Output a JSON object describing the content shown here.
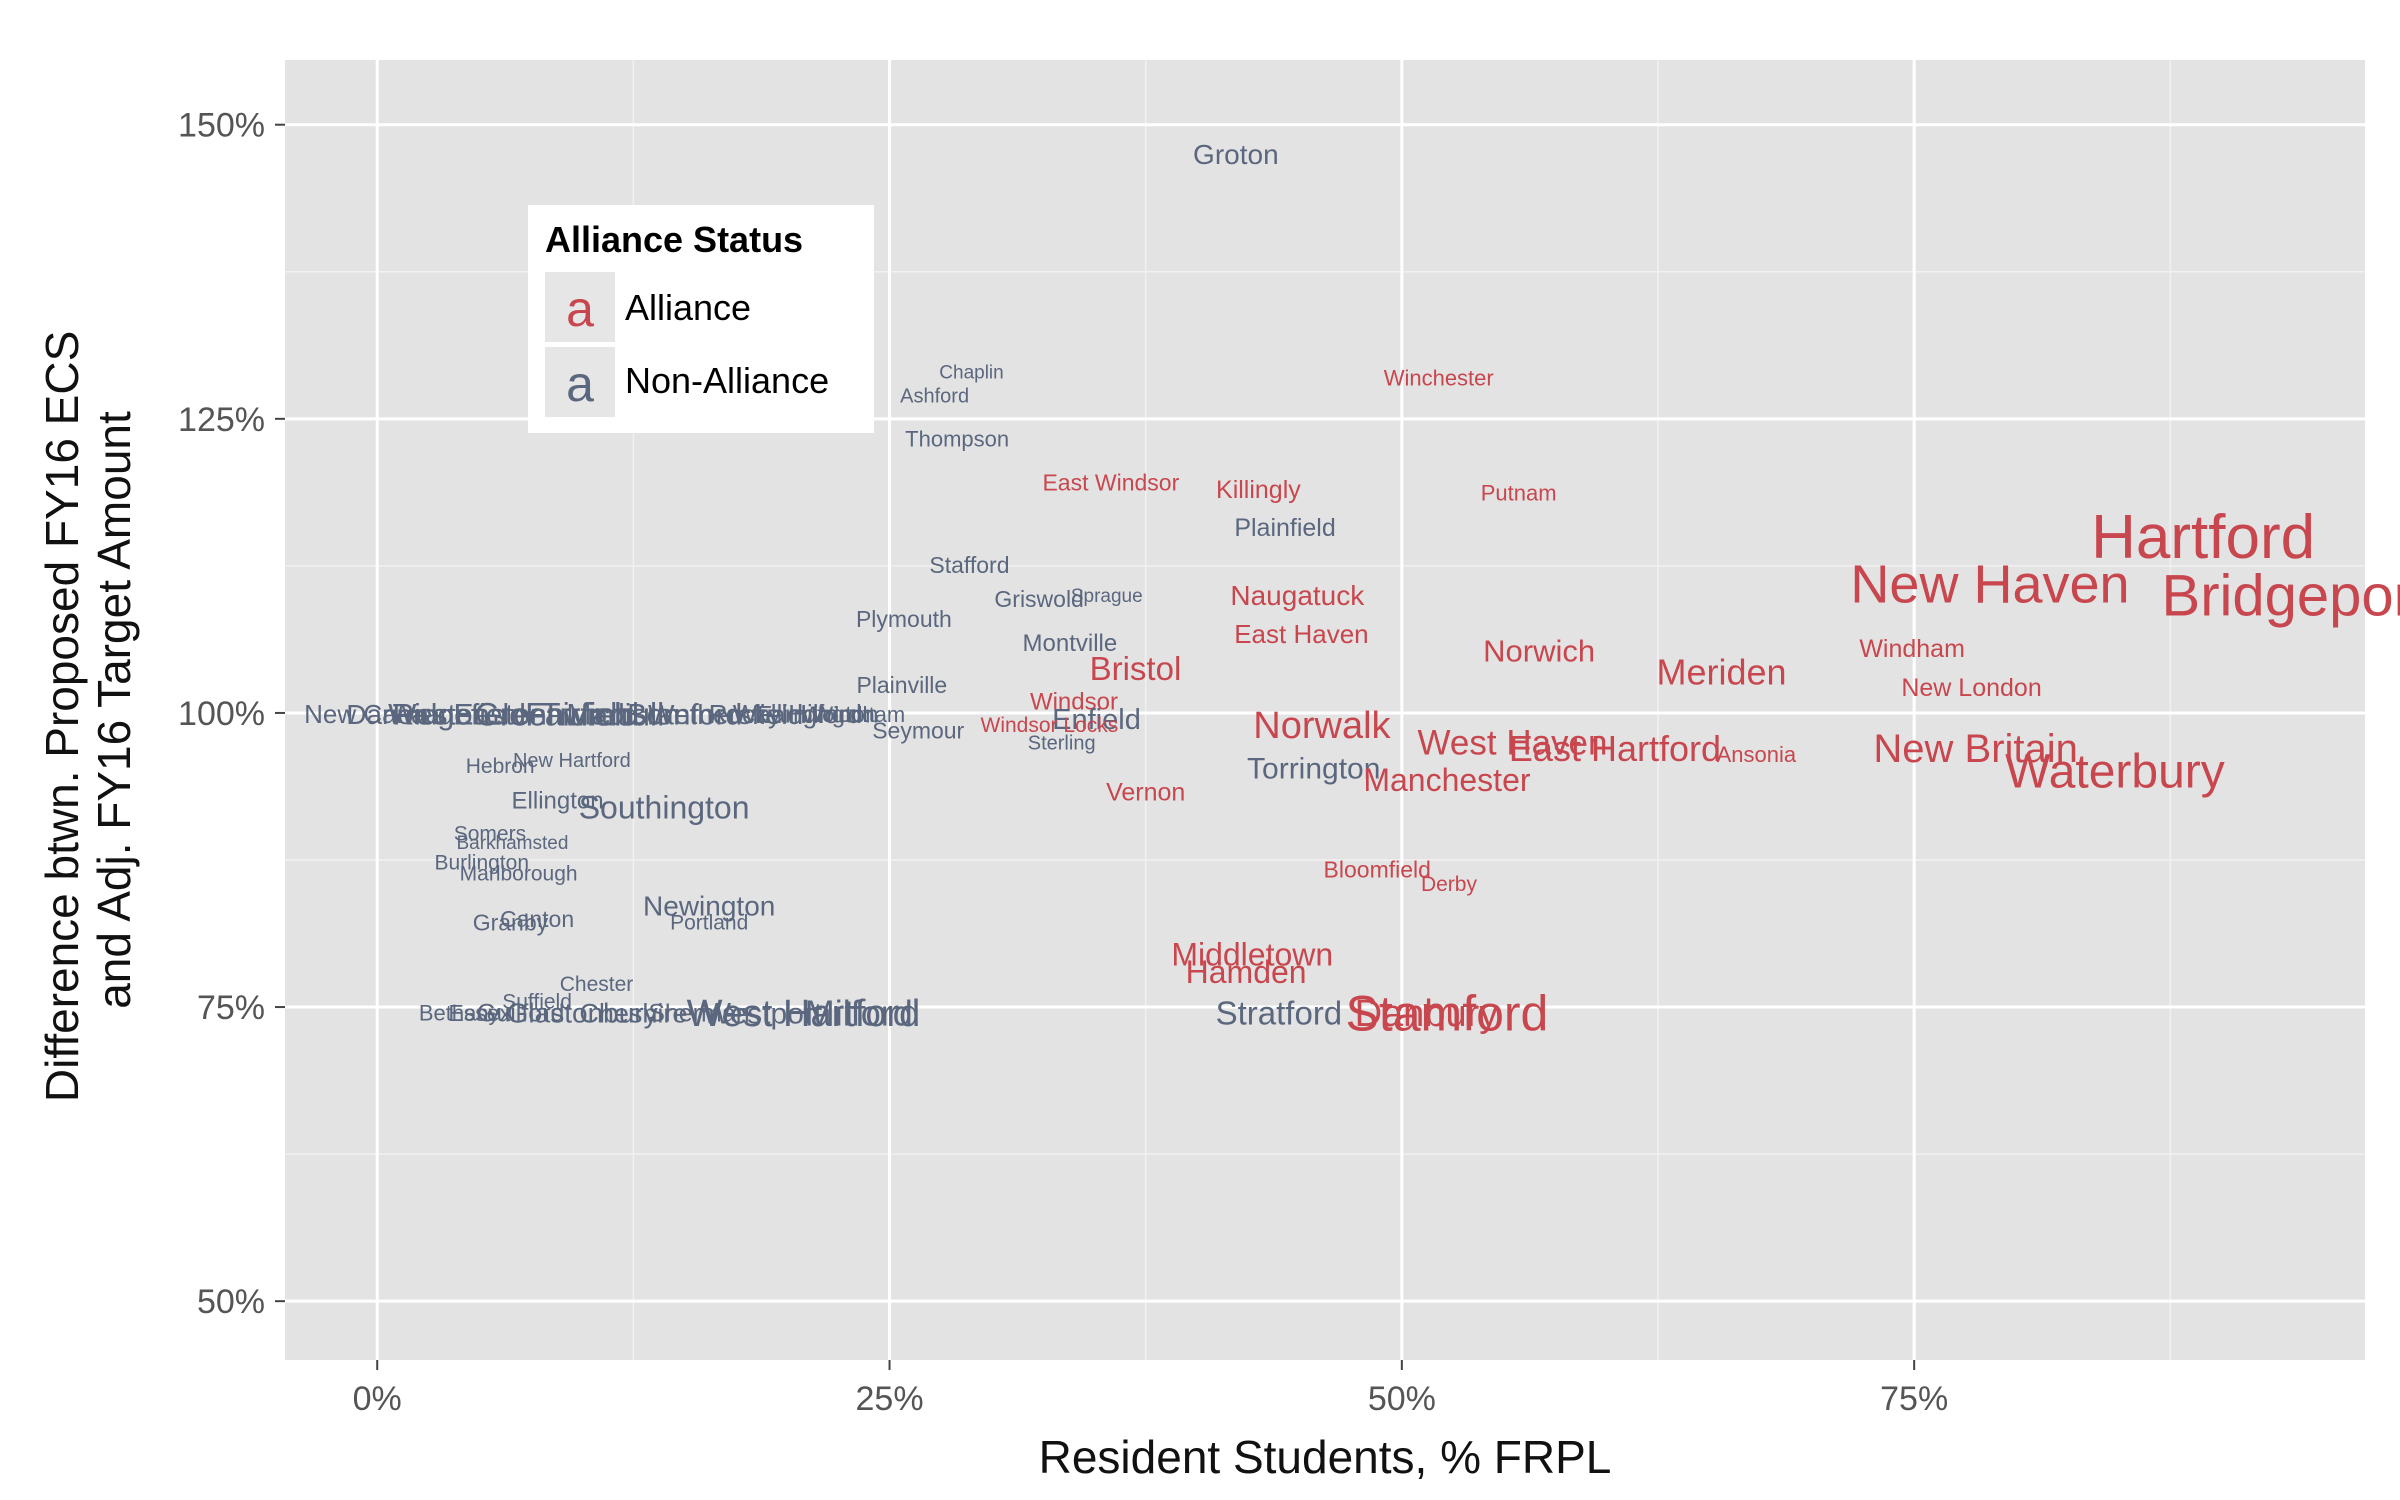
{
  "chart_data": {
    "type": "scatter",
    "title": "",
    "xlabel": "Resident Students, % FRPL",
    "ylabel": [
      "Difference btwn. Proposed FY16 ECS",
      "and Adj. FY16 Target Amount"
    ],
    "xlim": [
      -0.045,
      0.97
    ],
    "ylim": [
      0.45,
      1.555
    ],
    "x_ticks": [
      0,
      0.25,
      0.5,
      0.75
    ],
    "x_tick_labels": [
      "0%",
      "25%",
      "50%",
      "75%"
    ],
    "y_ticks": [
      0.5,
      0.75,
      1.0,
      1.25,
      1.5
    ],
    "y_tick_labels": [
      "50%",
      "75%",
      "100%",
      "125%",
      "150%"
    ],
    "grid": true,
    "legend": {
      "title": "Alliance Status",
      "placement": "top-left",
      "glyph": "a",
      "entries": [
        {
          "name": "Alliance",
          "color": "#c8474e"
        },
        {
          "name": "Non-Alliance",
          "color": "#5b677e"
        }
      ]
    },
    "colors": {
      "Alliance": "#c8474e",
      "Non-Alliance": "#5b677e"
    },
    "points": [
      {
        "label": "Groton",
        "x": 0.419,
        "y": 1.475,
        "group": "Non-Alliance",
        "size": 28
      },
      {
        "label": "Chaplin",
        "x": 0.29,
        "y": 1.29,
        "group": "Non-Alliance",
        "size": 19
      },
      {
        "label": "Ashford",
        "x": 0.272,
        "y": 1.27,
        "group": "Non-Alliance",
        "size": 20
      },
      {
        "label": "Thompson",
        "x": 0.283,
        "y": 1.233,
        "group": "Non-Alliance",
        "size": 22
      },
      {
        "label": "Winchester",
        "x": 0.518,
        "y": 1.285,
        "group": "Alliance",
        "size": 22
      },
      {
        "label": "East Windsor",
        "x": 0.358,
        "y": 1.196,
        "group": "Alliance",
        "size": 23
      },
      {
        "label": "Killingly",
        "x": 0.43,
        "y": 1.19,
        "group": "Alliance",
        "size": 25
      },
      {
        "label": "Putnam",
        "x": 0.557,
        "y": 1.187,
        "group": "Alliance",
        "size": 22
      },
      {
        "label": "Plainfield",
        "x": 0.443,
        "y": 1.158,
        "group": "Non-Alliance",
        "size": 25
      },
      {
        "label": "Stafford",
        "x": 0.289,
        "y": 1.126,
        "group": "Non-Alliance",
        "size": 23
      },
      {
        "label": "Sprague",
        "x": 0.356,
        "y": 1.1,
        "group": "Non-Alliance",
        "size": 19
      },
      {
        "label": "Griswold",
        "x": 0.323,
        "y": 1.097,
        "group": "Non-Alliance",
        "size": 23
      },
      {
        "label": "Plymouth",
        "x": 0.257,
        "y": 1.08,
        "group": "Non-Alliance",
        "size": 23
      },
      {
        "label": "Naugatuck",
        "x": 0.449,
        "y": 1.1,
        "group": "Alliance",
        "size": 28
      },
      {
        "label": "East Haven",
        "x": 0.451,
        "y": 1.067,
        "group": "Alliance",
        "size": 26
      },
      {
        "label": "Montville",
        "x": 0.338,
        "y": 1.06,
        "group": "Non-Alliance",
        "size": 24
      },
      {
        "label": "Norwich",
        "x": 0.567,
        "y": 1.053,
        "group": "Alliance",
        "size": 31
      },
      {
        "label": "Meriden",
        "x": 0.656,
        "y": 1.035,
        "group": "Alliance",
        "size": 36
      },
      {
        "label": "Windham",
        "x": 0.749,
        "y": 1.055,
        "group": "Alliance",
        "size": 25
      },
      {
        "label": "Bristol",
        "x": 0.37,
        "y": 1.038,
        "group": "Alliance",
        "size": 33
      },
      {
        "label": "New London",
        "x": 0.778,
        "y": 1.022,
        "group": "Alliance",
        "size": 25
      },
      {
        "label": "Hartford",
        "x": 0.891,
        "y": 1.15,
        "group": "Alliance",
        "size": 62
      },
      {
        "label": "New Haven",
        "x": 0.787,
        "y": 1.11,
        "group": "Alliance",
        "size": 54
      },
      {
        "label": "Bridgeport",
        "x": 0.936,
        "y": 1.1,
        "group": "Alliance",
        "size": 58
      },
      {
        "label": "Plainville",
        "x": 0.256,
        "y": 1.024,
        "group": "Non-Alliance",
        "size": 23
      },
      {
        "label": "Windsor",
        "x": 0.34,
        "y": 1.01,
        "group": "Alliance",
        "size": 24
      },
      {
        "label": "Enfield",
        "x": 0.351,
        "y": 0.995,
        "group": "Non-Alliance",
        "size": 29
      },
      {
        "label": "Windsor Locks",
        "x": 0.328,
        "y": 0.99,
        "group": "Alliance",
        "size": 21
      },
      {
        "label": "Seymour",
        "x": 0.264,
        "y": 0.985,
        "group": "Non-Alliance",
        "size": 23
      },
      {
        "label": "Sterling",
        "x": 0.334,
        "y": 0.975,
        "group": "Non-Alliance",
        "size": 20
      },
      {
        "label": "Norwalk",
        "x": 0.461,
        "y": 0.99,
        "group": "Alliance",
        "size": 38
      },
      {
        "label": "West Haven",
        "x": 0.554,
        "y": 0.975,
        "group": "Alliance",
        "size": 35
      },
      {
        "label": "East Hartford",
        "x": 0.604,
        "y": 0.97,
        "group": "Alliance",
        "size": 36
      },
      {
        "label": "Ansonia",
        "x": 0.673,
        "y": 0.965,
        "group": "Alliance",
        "size": 22
      },
      {
        "label": "New Britain",
        "x": 0.78,
        "y": 0.97,
        "group": "Alliance",
        "size": 40
      },
      {
        "label": "Waterbury",
        "x": 0.848,
        "y": 0.951,
        "group": "Alliance",
        "size": 48
      },
      {
        "label": "Torrington",
        "x": 0.457,
        "y": 0.953,
        "group": "Non-Alliance",
        "size": 30
      },
      {
        "label": "Manchester",
        "x": 0.522,
        "y": 0.943,
        "group": "Alliance",
        "size": 32
      },
      {
        "label": "Vernon",
        "x": 0.375,
        "y": 0.933,
        "group": "Alliance",
        "size": 25
      },
      {
        "label": "Hebron",
        "x": 0.06,
        "y": 0.955,
        "group": "Non-Alliance",
        "size": 21
      },
      {
        "label": "New Hartford",
        "x": 0.095,
        "y": 0.96,
        "group": "Non-Alliance",
        "size": 20
      },
      {
        "label": "Ellington",
        "x": 0.088,
        "y": 0.926,
        "group": "Non-Alliance",
        "size": 24
      },
      {
        "label": "Southington",
        "x": 0.14,
        "y": 0.92,
        "group": "Non-Alliance",
        "size": 32
      },
      {
        "label": "Somers",
        "x": 0.055,
        "y": 0.898,
        "group": "Non-Alliance",
        "size": 21
      },
      {
        "label": "Barkhamsted",
        "x": 0.066,
        "y": 0.89,
        "group": "Non-Alliance",
        "size": 19
      },
      {
        "label": "Burlington",
        "x": 0.051,
        "y": 0.873,
        "group": "Non-Alliance",
        "size": 21
      },
      {
        "label": "Marlborough",
        "x": 0.069,
        "y": 0.864,
        "group": "Non-Alliance",
        "size": 21
      },
      {
        "label": "Bloomfield",
        "x": 0.488,
        "y": 0.867,
        "group": "Alliance",
        "size": 23
      },
      {
        "label": "Derby",
        "x": 0.523,
        "y": 0.855,
        "group": "Alliance",
        "size": 21
      },
      {
        "label": "Newington",
        "x": 0.162,
        "y": 0.836,
        "group": "Non-Alliance",
        "size": 28
      },
      {
        "label": "Canton",
        "x": 0.078,
        "y": 0.825,
        "group": "Non-Alliance",
        "size": 23
      },
      {
        "label": "Granby",
        "x": 0.065,
        "y": 0.822,
        "group": "Non-Alliance",
        "size": 23
      },
      {
        "label": "Portland",
        "x": 0.162,
        "y": 0.822,
        "group": "Non-Alliance",
        "size": 21
      },
      {
        "label": "Middletown",
        "x": 0.427,
        "y": 0.795,
        "group": "Alliance",
        "size": 32
      },
      {
        "label": "Hamden",
        "x": 0.424,
        "y": 0.78,
        "group": "Alliance",
        "size": 32
      },
      {
        "label": "Chester",
        "x": 0.107,
        "y": 0.77,
        "group": "Non-Alliance",
        "size": 21
      },
      {
        "label": "Suffield",
        "x": 0.078,
        "y": 0.755,
        "group": "Non-Alliance",
        "size": 21
      },
      {
        "label": "Stratford",
        "x": 0.44,
        "y": 0.745,
        "group": "Non-Alliance",
        "size": 33
      },
      {
        "label": "Stamford",
        "x": 0.522,
        "y": 0.745,
        "group": "Alliance",
        "size": 50
      },
      {
        "label": "Danbury",
        "x": 0.512,
        "y": 0.745,
        "group": "Alliance",
        "size": 38
      },
      {
        "label": "West Hartford",
        "x": 0.208,
        "y": 0.745,
        "group": "Non-Alliance",
        "size": 38
      },
      {
        "label": "Milford",
        "x": 0.235,
        "y": 0.745,
        "group": "Non-Alliance",
        "size": 36
      },
      {
        "label": "Westport",
        "x": 0.188,
        "y": 0.745,
        "group": "Non-Alliance",
        "size": 30
      },
      {
        "label": "Glastonbury",
        "x": 0.1,
        "y": 0.745,
        "group": "Non-Alliance",
        "size": 28
      },
      {
        "label": "Guilford",
        "x": 0.07,
        "y": 0.745,
        "group": "Non-Alliance",
        "size": 25
      },
      {
        "label": "Bethany",
        "x": 0.04,
        "y": 0.745,
        "group": "Non-Alliance",
        "size": 22
      },
      {
        "label": "Essex",
        "x": 0.05,
        "y": 0.745,
        "group": "Non-Alliance",
        "size": 23
      },
      {
        "label": "Sherman",
        "x": 0.157,
        "y": 0.745,
        "group": "Non-Alliance",
        "size": 25
      },
      {
        "label": "Cheshire",
        "x": 0.125,
        "y": 0.745,
        "group": "Non-Alliance",
        "size": 27
      },
      {
        "label": "New Canaan",
        "x": 0.001,
        "y": 0.999,
        "group": "Non-Alliance",
        "size": 26
      },
      {
        "label": "Darien",
        "x": 0.005,
        "y": 0.999,
        "group": "Non-Alliance",
        "size": 28
      },
      {
        "label": "Ridgefield",
        "x": 0.04,
        "y": 0.999,
        "group": "Non-Alliance",
        "size": 30
      },
      {
        "label": "Weston",
        "x": 0.03,
        "y": 0.999,
        "group": "Non-Alliance",
        "size": 30
      },
      {
        "label": "Easton",
        "x": 0.06,
        "y": 0.999,
        "group": "Non-Alliance",
        "size": 30
      },
      {
        "label": "Trumbull",
        "x": 0.11,
        "y": 0.999,
        "group": "Non-Alliance",
        "size": 32
      },
      {
        "label": "Fairfield",
        "x": 0.1,
        "y": 0.999,
        "group": "Non-Alliance",
        "size": 32
      },
      {
        "label": "Greenwich",
        "x": 0.085,
        "y": 0.999,
        "group": "Non-Alliance",
        "size": 32
      },
      {
        "label": "Madison",
        "x": 0.12,
        "y": 0.999,
        "group": "Non-Alliance",
        "size": 30
      },
      {
        "label": "Branford",
        "x": 0.15,
        "y": 0.999,
        "group": "Non-Alliance",
        "size": 30
      },
      {
        "label": "Wethersfield",
        "x": 0.17,
        "y": 0.999,
        "group": "Non-Alliance",
        "size": 28
      },
      {
        "label": "Rocky Hill",
        "x": 0.19,
        "y": 0.999,
        "group": "Non-Alliance",
        "size": 26
      },
      {
        "label": "Wallingford",
        "x": 0.205,
        "y": 0.999,
        "group": "Non-Alliance",
        "size": 26
      },
      {
        "label": "Farmington",
        "x": 0.215,
        "y": 0.999,
        "group": "Non-Alliance",
        "size": 24
      },
      {
        "label": "Wolcott",
        "x": 0.225,
        "y": 0.999,
        "group": "Non-Alliance",
        "size": 22
      },
      {
        "label": "Windham",
        "x": 0.235,
        "y": 0.999,
        "group": "Non-Alliance",
        "size": 22
      }
    ]
  }
}
